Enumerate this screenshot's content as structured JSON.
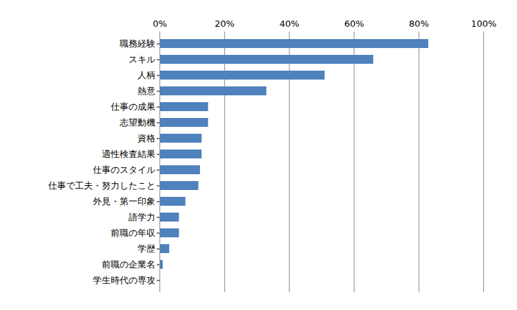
{
  "chart_data": {
    "type": "bar",
    "orientation": "horizontal",
    "categories": [
      "職務経験",
      "スキル",
      "人柄",
      "熱意",
      "仕事の成果",
      "志望動機",
      "資格",
      "適性検査結果",
      "仕事のスタイル",
      "仕事で工夫・努力したこと",
      "外見・第一印象",
      "語学力",
      "前職の年収",
      "学歴",
      "前職の企業名",
      "学生時代の専攻"
    ],
    "values": [
      83,
      66,
      51,
      33,
      15,
      15,
      13,
      13,
      12.5,
      12,
      8,
      6,
      6,
      3,
      1,
      0
    ],
    "color": "#4f81bd",
    "xlim": [
      0,
      100
    ],
    "xticks": [
      {
        "value": 0,
        "label": "0%"
      },
      {
        "value": 20,
        "label": "20%"
      },
      {
        "value": 40,
        "label": "40%"
      },
      {
        "value": 60,
        "label": "60%"
      },
      {
        "value": 80,
        "label": "80%"
      },
      {
        "value": 100,
        "label": "100%"
      }
    ],
    "grid": true
  }
}
